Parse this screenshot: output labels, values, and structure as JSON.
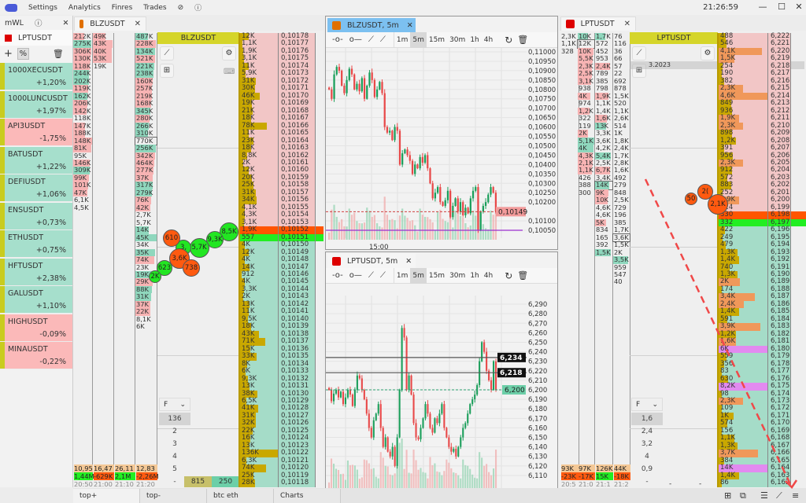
{
  "menu": {
    "items": [
      "Settings",
      "Analytics",
      "Finres",
      "Trades"
    ],
    "clock": "21:26:59",
    "icons": [
      "pin-off-icon",
      "help-icon"
    ]
  },
  "watchlist": {
    "title": "mWL",
    "symbol": "LPTUSDT",
    "symbol_color": "#dd0000",
    "items": [
      {
        "name": "1000XECUSDT",
        "change": "+1,20%",
        "up": true
      },
      {
        "name": "1000LUNCUSDT",
        "change": "+1,97%",
        "up": true
      },
      {
        "name": "API3USDT",
        "change": "-1,75%",
        "up": false
      },
      {
        "name": "BATUSDT",
        "change": "+1,22%",
        "up": true
      },
      {
        "name": "DEFIUSDT",
        "change": "+1,06%",
        "up": true
      },
      {
        "name": "ENSUSDT",
        "change": "+0,73%",
        "up": true
      },
      {
        "name": "ETHUSDT",
        "change": "+0,75%",
        "up": true
      },
      {
        "name": "HFTUSDT",
        "change": "+2,38%",
        "up": true
      },
      {
        "name": "GALUSDT",
        "change": "+1,10%",
        "up": true
      },
      {
        "name": "HIGHUSDT",
        "change": "-0,09%",
        "up": false
      },
      {
        "name": "MINAUSDT",
        "change": "-0,22%",
        "up": false
      }
    ]
  },
  "colors": {
    "ask_bg": "#f2c6c6",
    "bid_bg": "#a5dcc8",
    "best_ask": "#ff5500",
    "best_bid": "#22ee22",
    "vol_bar": "#c9a800",
    "big_bar": "#f0985a",
    "huge_bar": "#e28af0",
    "header": "#d5d52a",
    "sell_cell": "#f7b3b3",
    "buy_cell": "#8fd7bd"
  },
  "blz": {
    "tab": "BLZUSDT",
    "tab_color": "#e07000",
    "header": "BLZUSDT",
    "cols": [
      [
        [
          "212K",
          "s"
        ],
        [
          "275K",
          "b"
        ],
        [
          "306K",
          "s"
        ],
        [
          "130K",
          "s"
        ],
        [
          "118K",
          "s"
        ],
        [
          "244K",
          "b"
        ],
        [
          "202K",
          "b"
        ],
        [
          "119K",
          "s"
        ],
        [
          "162K",
          "b"
        ],
        [
          "206K",
          "s"
        ],
        [
          "142K",
          "s"
        ],
        [
          "118K",
          ""
        ],
        [
          "147K",
          "s"
        ],
        [
          "188K",
          "s"
        ],
        [
          "148K",
          "s"
        ],
        [
          "81K",
          "s"
        ],
        [
          "95K",
          ""
        ],
        [
          "146K",
          "s"
        ],
        [
          "309K",
          "b"
        ],
        [
          "99K",
          "s"
        ],
        [
          "101K",
          "s"
        ],
        [
          "47K",
          "s"
        ],
        [
          "6,1K",
          ""
        ],
        [
          "4,5K",
          ""
        ]
      ],
      [
        [
          "49K",
          "s"
        ],
        [
          "43K",
          "s"
        ],
        [
          "40K",
          "s"
        ],
        [
          "53K",
          "s"
        ],
        [
          "19K",
          ""
        ]
      ],
      [],
      [
        [
          "487K",
          "b"
        ],
        [
          "228K",
          "s"
        ],
        [
          "134K",
          "b"
        ],
        [
          "521K",
          "s"
        ],
        [
          "221K",
          "b"
        ],
        [
          "238K",
          "b"
        ],
        [
          "160K",
          "s"
        ],
        [
          "257K",
          "s"
        ],
        [
          "219K",
          "s"
        ],
        [
          "168K",
          "s"
        ],
        [
          "345K",
          "b"
        ],
        [
          "280K",
          "s"
        ],
        [
          "266K",
          "b"
        ],
        [
          "310K",
          "b"
        ],
        [
          "770K",
          "x"
        ],
        [
          "256K",
          "b"
        ],
        [
          "342K",
          "s"
        ],
        [
          "464K",
          "s"
        ],
        [
          "277K",
          "s"
        ],
        [
          "37K",
          "s"
        ],
        [
          "317K",
          "b"
        ],
        [
          "279K",
          "b"
        ],
        [
          "76K",
          "s"
        ],
        [
          "42K",
          "s"
        ],
        [
          "2,7K",
          ""
        ],
        [
          "5,7K",
          ""
        ],
        [
          "14K",
          "b"
        ],
        [
          "45K",
          "b"
        ],
        [
          "34K",
          ""
        ],
        [
          "35K",
          "b"
        ],
        [
          "74K",
          "s"
        ],
        [
          "23K",
          ""
        ],
        [
          "19K",
          "b"
        ],
        [
          "29K",
          "s"
        ],
        [
          "88K",
          "b"
        ],
        [
          "31K",
          "b"
        ],
        [
          "37K",
          "s"
        ],
        [
          "22K",
          "s"
        ],
        [
          "8,1K",
          ""
        ],
        [
          "6K",
          ""
        ]
      ]
    ],
    "summary": {
      "a": [
        "10,95",
        "16,47",
        "26,11",
        "12,83"
      ],
      "b": [
        "1,44M",
        "-629K",
        "2,1M",
        "-2,26M"
      ],
      "t": [
        "20:50",
        "21:00",
        "21:10",
        "21:20"
      ]
    },
    "prices": [
      "0,10178",
      "0,10177",
      "0,10176",
      "0,10175",
      "0,10174",
      "0,10173",
      "0,10172",
      "0,10171",
      "0,10170",
      "0,10169",
      "0,10168",
      "0,10167",
      "0,10166",
      "0,10165",
      "0,10164",
      "0,10163",
      "0,10162",
      "0,10161",
      "0,10160",
      "0,10159",
      "0,10158",
      "0,10157",
      "0,10156",
      "0,10155",
      "0,10154",
      "0,10153",
      "0,10152",
      "0,10151",
      "0,10150",
      "0,10149",
      "0,10148",
      "0,10147",
      "0,10146",
      "0,10145",
      "0,10144",
      "0,10143",
      "0,10142",
      "0,10141",
      "0,10140",
      "0,10139",
      "0,10138",
      "0,10137",
      "0,10136",
      "0,10135",
      "0,10134",
      "0,10133",
      "0,10132",
      "0,10131",
      "0,10130",
      "0,10129",
      "0,10128",
      "0,10127",
      "0,10126",
      "0,10125",
      "0,10124",
      "0,10123",
      "0,10122",
      "0,10121",
      "0,10120",
      "0,10119",
      "0,10118"
    ],
    "volumes": [
      "12K",
      "1,1K",
      "1,9K",
      "3,1K",
      "11K",
      "5,9K",
      "31K",
      "30K",
      "46K",
      "19K",
      "21K",
      "18K",
      "78K",
      "11K",
      "23K",
      "18K",
      "8,8K",
      "2K",
      "12K",
      "20K",
      "25K",
      "31K",
      "34K",
      "4,1K",
      "4,3K",
      "3,1K",
      "1,9K",
      "557",
      "4K",
      "12K",
      "4K",
      "14K",
      "912",
      "4K",
      "3,3K",
      "2K",
      "13K",
      "11K",
      "9,5K",
      "18K",
      "43K",
      "71K",
      "15K",
      "33K",
      "8K",
      "6K",
      "9,3K",
      "13K",
      "38K",
      "6,5K",
      "41K",
      "31K",
      "32K",
      "22K",
      "16K",
      "13K",
      "136K",
      "6,3K",
      "74K",
      "25K",
      "28K"
    ],
    "best_ask_index": 26,
    "filter": {
      "label": "F",
      "options": [
        "136",
        "2",
        "3",
        "4",
        "5",
        "-"
      ],
      "selected": "136"
    },
    "totals": [
      "815",
      "250"
    ],
    "bubbles": [
      {
        "t": "8,5K",
        "c": "g"
      },
      {
        "t": "9,3K",
        "c": "g"
      },
      {
        "t": "5,7K",
        "c": "g"
      },
      {
        "t": "3,",
        "c": "g"
      },
      {
        "t": "610",
        "c": "o"
      },
      {
        "t": "3,6K",
        "c": "o"
      },
      {
        "t": "738",
        "c": "o"
      },
      {
        "t": "623",
        "c": "g"
      },
      {
        "t": "2K",
        "c": "g"
      }
    ]
  },
  "lpt": {
    "tab": "LPTUSDT",
    "tab_color": "#dd0000",
    "header": "LPTUSDT",
    "date": "3.2023",
    "cols": [
      [
        [
          "2,3K",
          ""
        ],
        [
          "1,1K",
          ""
        ],
        [
          "328",
          ""
        ]
      ],
      [
        [
          "10K",
          "b"
        ],
        [
          "12K",
          "x"
        ],
        [
          "10K",
          "s"
        ],
        [
          "5,5K",
          "s"
        ],
        [
          "2,3K",
          "s"
        ],
        [
          "2,5K",
          "s"
        ],
        [
          "3,1K",
          "s"
        ],
        [
          "938",
          ""
        ],
        [
          "4K",
          "s"
        ],
        [
          "974",
          ""
        ],
        [
          "1,2K",
          "s"
        ],
        [
          "322",
          ""
        ],
        [
          "119",
          ""
        ],
        [
          "2K",
          "s"
        ],
        [
          "5,1K",
          "b"
        ],
        [
          "4K",
          "b"
        ],
        [
          "4,3K",
          "s"
        ],
        [
          "2,1K",
          "s"
        ],
        [
          "1,1K",
          "s"
        ],
        [
          "426",
          ""
        ],
        [
          "388",
          ""
        ],
        [
          "300",
          ""
        ]
      ],
      [
        [
          "1,7K",
          "b"
        ],
        [
          "572",
          ""
        ],
        [
          "452",
          ""
        ],
        [
          "953",
          ""
        ],
        [
          "2,4K",
          "s"
        ],
        [
          "789",
          ""
        ],
        [
          "385",
          ""
        ],
        [
          "798",
          ""
        ],
        [
          "1,9K",
          "s"
        ],
        [
          "1,1K",
          ""
        ],
        [
          "1,4K",
          ""
        ],
        [
          "1,6K",
          "s"
        ],
        [
          "13K",
          "b"
        ],
        [
          "3,3K",
          ""
        ],
        [
          "3,6K",
          ""
        ],
        [
          "4,2K",
          ""
        ],
        [
          "5,4K",
          "b"
        ],
        [
          "2,5K",
          ""
        ],
        [
          "6,7K",
          "s"
        ],
        [
          "3,4K",
          ""
        ],
        [
          "14K",
          "bx"
        ],
        [
          "9K",
          "s"
        ],
        [
          "10K",
          "s"
        ],
        [
          "4,6K",
          ""
        ],
        [
          "4,6K",
          ""
        ],
        [
          "5K",
          "s"
        ],
        [
          "834",
          ""
        ],
        [
          "165",
          ""
        ],
        [
          "392",
          ""
        ],
        [
          "1,5K",
          "b"
        ]
      ],
      [
        [
          "76",
          ""
        ],
        [
          "116",
          ""
        ],
        [
          "36",
          ""
        ],
        [
          "66",
          ""
        ],
        [
          "57",
          ""
        ],
        [
          "22",
          ""
        ],
        [
          "692",
          ""
        ],
        [
          "878",
          ""
        ],
        [
          "1,5K",
          ""
        ],
        [
          "520",
          ""
        ],
        [
          "1,1K",
          ""
        ],
        [
          "2,6K",
          ""
        ],
        [
          "514",
          ""
        ],
        [
          "1K",
          ""
        ],
        [
          "1,8K",
          ""
        ],
        [
          "2,4K",
          ""
        ],
        [
          "1,7K",
          ""
        ],
        [
          "2,8K",
          ""
        ],
        [
          "1,6K",
          ""
        ],
        [
          "492",
          ""
        ],
        [
          "279",
          ""
        ],
        [
          "848",
          ""
        ],
        [
          "2,5K",
          ""
        ],
        [
          "729",
          ""
        ],
        [
          "196",
          ""
        ],
        [
          "385",
          ""
        ],
        [
          "1,7K",
          ""
        ],
        [
          "3,6K",
          "x"
        ],
        [
          "1,5K",
          ""
        ],
        [
          "2K",
          ""
        ],
        [
          "3,5K",
          "b"
        ],
        [
          "959",
          ""
        ],
        [
          "547",
          ""
        ],
        [
          "40",
          ""
        ]
      ]
    ],
    "summary": {
      "a": [
        "93K",
        "97K",
        "126K",
        "44K"
      ],
      "b": [
        "-23K",
        "-17K",
        "15K",
        "-18K"
      ],
      "t": [
        "20:5",
        "21:0",
        "21:1",
        "21:2"
      ]
    },
    "prices": [
      "6,222",
      "6,221",
      "6,220",
      "6,219",
      "6,218",
      "6,217",
      "6,216",
      "6,215",
      "6,214",
      "6,213",
      "6,212",
      "6,211",
      "6,210",
      "6,209",
      "6,208",
      "6,207",
      "6,206",
      "6,205",
      "6,204",
      "6,203",
      "6,202",
      "6,201",
      "6,200",
      "6,199",
      "6,198",
      "6,197",
      "6,196",
      "6,195",
      "6,194",
      "6,193",
      "6,192",
      "6,191",
      "6,190",
      "6,189",
      "6,188",
      "6,187",
      "6,186",
      "6,185",
      "6,184",
      "6,183",
      "6,182",
      "6,181",
      "6,180",
      "6,179",
      "6,178",
      "6,177",
      "6,176",
      "6,175",
      "6,174",
      "6,173",
      "6,172",
      "6,171",
      "6,170",
      "6,169",
      "6,168",
      "6,167",
      "6,166",
      "6,165",
      "6,164",
      "6,163",
      "6,162"
    ],
    "volumes": [
      "488",
      "546",
      "4,1K",
      "1,5K",
      "254",
      "190",
      "382",
      "2,3K",
      "4,6K",
      "849",
      "936",
      "1,9K",
      "2,3K",
      "898",
      "1,2K",
      "391",
      "956",
      "2,3K",
      "912",
      "572",
      "883",
      "252",
      "1,9K",
      "124",
      "330",
      "332",
      "422",
      "249",
      "479",
      "1,3K",
      "1,4K",
      "740",
      "1,3K",
      "2K",
      "174",
      "3,4K",
      "2,4K",
      "1,4K",
      "591",
      "3,9K",
      "1,2K",
      "1,6K",
      "6K",
      "559",
      "356",
      "83",
      "630",
      "8,2K",
      "98",
      "2,3K",
      "109",
      "1K",
      "574",
      "156",
      "1,1K",
      "1,3K",
      "3,7K",
      "384",
      "14K",
      "1,4K",
      "86"
    ],
    "best_ask_index": 24,
    "filter": {
      "label": "F",
      "options": [
        "1,6",
        "2,4",
        "3,2",
        "4",
        "0,9",
        "-"
      ],
      "selected": "1,6"
    },
    "dashes": [
      "-",
      "-",
      "-"
    ],
    "bubbles": [
      {
        "t": "50",
        "c": "o"
      },
      {
        "t": "2(",
        "c": "o"
      },
      {
        "t": "2,1K",
        "c": "o"
      }
    ]
  },
  "bottom_tabs": [
    "top+",
    "top-",
    "btc eth",
    "Charts"
  ],
  "chart_data": [
    {
      "type": "candlestick",
      "title": "BLZUSDT, 5m",
      "timeframes": [
        "1m",
        "5m",
        "15m",
        "30m",
        "1h",
        "4h"
      ],
      "selected_tf": "5m",
      "xlabel_ticks": [
        "15:00"
      ],
      "y_ticks": [
        "0,11000",
        "0,10950",
        "0,10900",
        "0,10850",
        "0,10800",
        "0,10750",
        "0,10700",
        "0,10650",
        "0,10600",
        "0,10550",
        "0,10500",
        "0,10450",
        "0,10400",
        "0,10350",
        "0,10300",
        "0,10250",
        "0,10200",
        "0,10100",
        "0,10050"
      ],
      "ylim": [
        0.1005,
        0.11
      ],
      "last_price": "0,10149",
      "last_value": 0.10149,
      "level_line": 0.1005,
      "closes": [
        0.108,
        0.1075,
        0.1088,
        0.1092,
        0.109,
        0.1082,
        0.1078,
        0.1085,
        0.1091,
        0.1088,
        0.108,
        0.1083,
        0.1079,
        0.1086,
        0.1075,
        0.1082,
        0.1089,
        0.1085,
        0.1076,
        0.108,
        0.1084,
        0.1078,
        0.106,
        0.1057,
        0.1058,
        0.1053,
        0.106,
        0.1058,
        0.104,
        0.1046,
        0.1048,
        0.1045,
        0.1042,
        0.1035,
        0.104,
        0.1038,
        0.1044,
        0.1041,
        0.1045,
        0.1038,
        0.103,
        0.1022,
        0.1025,
        0.1028,
        0.102,
        0.1018,
        0.1021,
        0.1026,
        0.1012,
        0.1018,
        0.1022,
        0.1015,
        0.102,
        0.1013,
        0.1017,
        0.1014,
        0.1022,
        0.1026,
        0.1028,
        0.1005,
        0.1015,
        0.1018,
        0.102,
        0.1024,
        0.1028,
        0.1025,
        0.1015
      ]
    },
    {
      "type": "candlestick",
      "title": "LPTUSDT, 5m",
      "timeframes": [
        "1m",
        "5m",
        "15m",
        "30m",
        "1h",
        "4h"
      ],
      "selected_tf": "5m",
      "xlabel_ticks": [
        "15:00"
      ],
      "y_ticks": [
        "6,290",
        "6,280",
        "6,270",
        "6,260",
        "6,250",
        "6,240",
        "6,230",
        "6,220",
        "6,210",
        "6,200",
        "6,190",
        "6,180",
        "6,170",
        "6,160",
        "6,150",
        "6,140",
        "6,130",
        "6,120",
        "6,110"
      ],
      "ylim": [
        6.105,
        6.295
      ],
      "levels": [
        {
          "label": "6,234",
          "value": 6.234
        },
        {
          "label": "6,218",
          "value": 6.218
        }
      ],
      "last_price": "6,200",
      "last_value": 6.2,
      "closes": [
        6.2,
        6.188,
        6.196,
        6.2,
        6.192,
        6.198,
        6.185,
        6.192,
        6.2,
        6.195,
        6.183,
        6.2,
        6.215,
        6.212,
        6.2,
        6.19,
        6.175,
        6.16,
        6.15,
        6.168,
        6.175,
        6.185,
        6.16,
        6.14,
        6.15,
        6.135,
        6.13,
        6.14,
        6.12,
        6.15,
        6.2,
        6.265,
        6.255,
        6.2,
        6.215,
        6.195,
        6.165,
        6.15,
        6.148,
        6.16,
        6.17,
        6.185,
        6.175,
        6.16,
        6.155,
        6.17,
        6.165,
        6.175,
        6.185,
        6.16,
        6.15,
        6.14,
        6.135,
        6.138,
        6.13,
        6.14,
        6.15,
        6.16,
        6.165,
        6.175,
        6.185,
        6.19,
        6.195,
        6.205,
        6.23,
        6.25,
        6.24,
        6.22,
        6.21,
        6.2,
        6.23,
        6.2
      ]
    }
  ]
}
